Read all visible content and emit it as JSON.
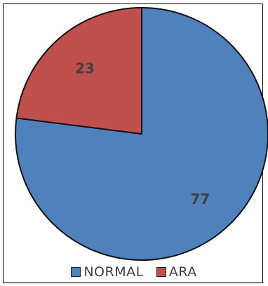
{
  "chart_data": {
    "type": "pie",
    "categories": [
      "NORMAL",
      "ARA"
    ],
    "values": [
      77,
      23
    ],
    "data_labels": [
      "77",
      "23"
    ],
    "colors": [
      "#4F81BD",
      "#C0504D"
    ],
    "start_angle": "12 o'clock, clockwise",
    "legend_placement": "bottom",
    "title": ""
  },
  "legend": {
    "items": [
      {
        "label": "NORMAL",
        "color": "#4F81BD"
      },
      {
        "label": "ARA",
        "color": "#C0504D"
      }
    ]
  }
}
